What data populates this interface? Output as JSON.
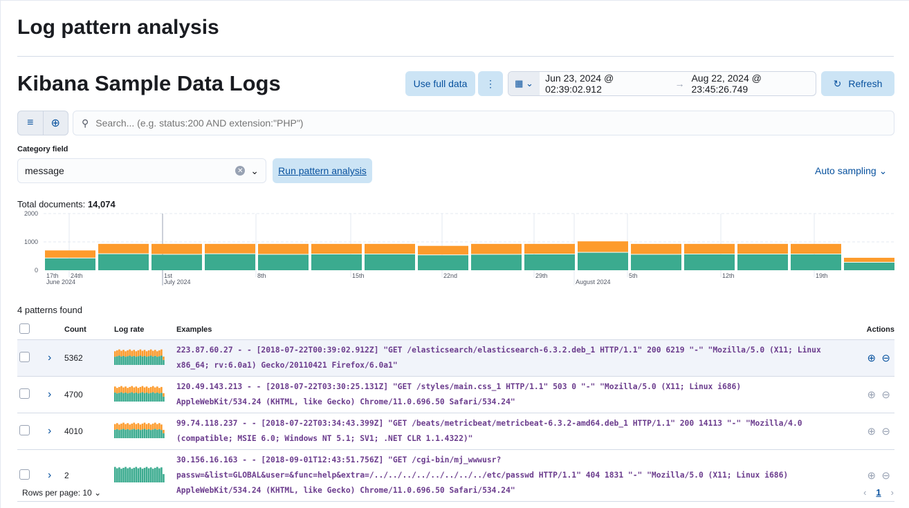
{
  "page_title": "Log pattern analysis",
  "data_view": "Kibana Sample Data Logs",
  "toolbar": {
    "use_full_data": "Use full data",
    "start": "Jun 23, 2024 @ 02:39:02.912",
    "end": "Aug 22, 2024 @ 23:45:26.749",
    "refresh": "Refresh",
    "arrow": "→"
  },
  "search": {
    "placeholder": "Search... (e.g. status:200 AND extension:\"PHP\")",
    "value": ""
  },
  "category_field": {
    "label": "Category field",
    "value": "message"
  },
  "run_button": "Run pattern analysis",
  "sampling": "Auto sampling",
  "total": {
    "label": "Total documents:",
    "value": "14,074"
  },
  "colors": {
    "green": "#3bab8f",
    "orange": "#fd9b2c",
    "accent": "#07519e"
  },
  "chart_data": {
    "type": "bar",
    "stacked": true,
    "ylim": [
      0,
      2000
    ],
    "yticks": [
      "0",
      "1000",
      "2000"
    ],
    "xticks": [
      {
        "label": "17th",
        "sub": "June 2024"
      },
      {
        "label": "24th"
      },
      {
        "label": "1st",
        "sub": "July 2024"
      },
      {
        "label": "8th"
      },
      {
        "label": "15th"
      },
      {
        "label": "22nd"
      },
      {
        "label": "29th"
      },
      {
        "label": "",
        "sub": "August 2024"
      },
      {
        "label": "5th"
      },
      {
        "label": "12th"
      },
      {
        "label": "19th"
      }
    ],
    "series": [
      {
        "values": [
          420,
          570,
          550,
          570,
          550,
          560,
          560,
          530,
          550,
          560,
          620,
          550,
          560,
          560,
          560,
          270
        ]
      },
      {
        "values": [
          280,
          360,
          380,
          360,
          380,
          370,
          370,
          330,
          380,
          370,
          400,
          380,
          370,
          370,
          370,
          170
        ]
      }
    ]
  },
  "patterns_found": "4 patterns found",
  "table": {
    "headers": {
      "count": "Count",
      "log_rate": "Log rate",
      "examples": "Examples",
      "actions": "Actions"
    },
    "rows": [
      {
        "count": "5362",
        "example": "223.87.60.27 - - [2018-07-22T00:39:02.912Z] \"GET /elasticsearch/elasticsearch-6.3.2.deb_1 HTTP/1.1\" 200 6219 \"-\" \"Mozilla/5.0 (X11; Linux x86_64; rv:6.0a1) Gecko/20110421 Firefox/6.0a1\"",
        "has_orange": true
      },
      {
        "count": "4700",
        "example": "120.49.143.213 - - [2018-07-22T03:30:25.131Z] \"GET /styles/main.css_1 HTTP/1.1\" 503 0 \"-\" \"Mozilla/5.0 (X11; Linux i686) AppleWebKit/534.24 (KHTML, like Gecko) Chrome/11.0.696.50 Safari/534.24\"",
        "has_orange": true
      },
      {
        "count": "4010",
        "example": "99.74.118.237 - - [2018-07-22T03:34:43.399Z] \"GET /beats/metricbeat/metricbeat-6.3.2-amd64.deb_1 HTTP/1.1\" 200 14113 \"-\" \"Mozilla/4.0 (compatible; MSIE 6.0; Windows NT 5.1; SV1; .NET CLR 1.1.4322)\"",
        "has_orange": true
      },
      {
        "count": "2",
        "example": "30.156.16.163 - - [2018-09-01T12:43:51.756Z] \"GET /cgi-bin/mj_wwwusr?passw=&list=GLOBAL&user=&func=help&extra=/../../../../../../../../etc/passwd HTTP/1.1\" 404 1831 \"-\" \"Mozilla/5.0 (X11; Linux i686) AppleWebKit/534.24 (KHTML, like Gecko) Chrome/11.0.696.50 Safari/534.24\"",
        "has_orange": false
      }
    ]
  },
  "pagination": {
    "rows_per_page": "Rows per page: 10",
    "current": "1"
  }
}
